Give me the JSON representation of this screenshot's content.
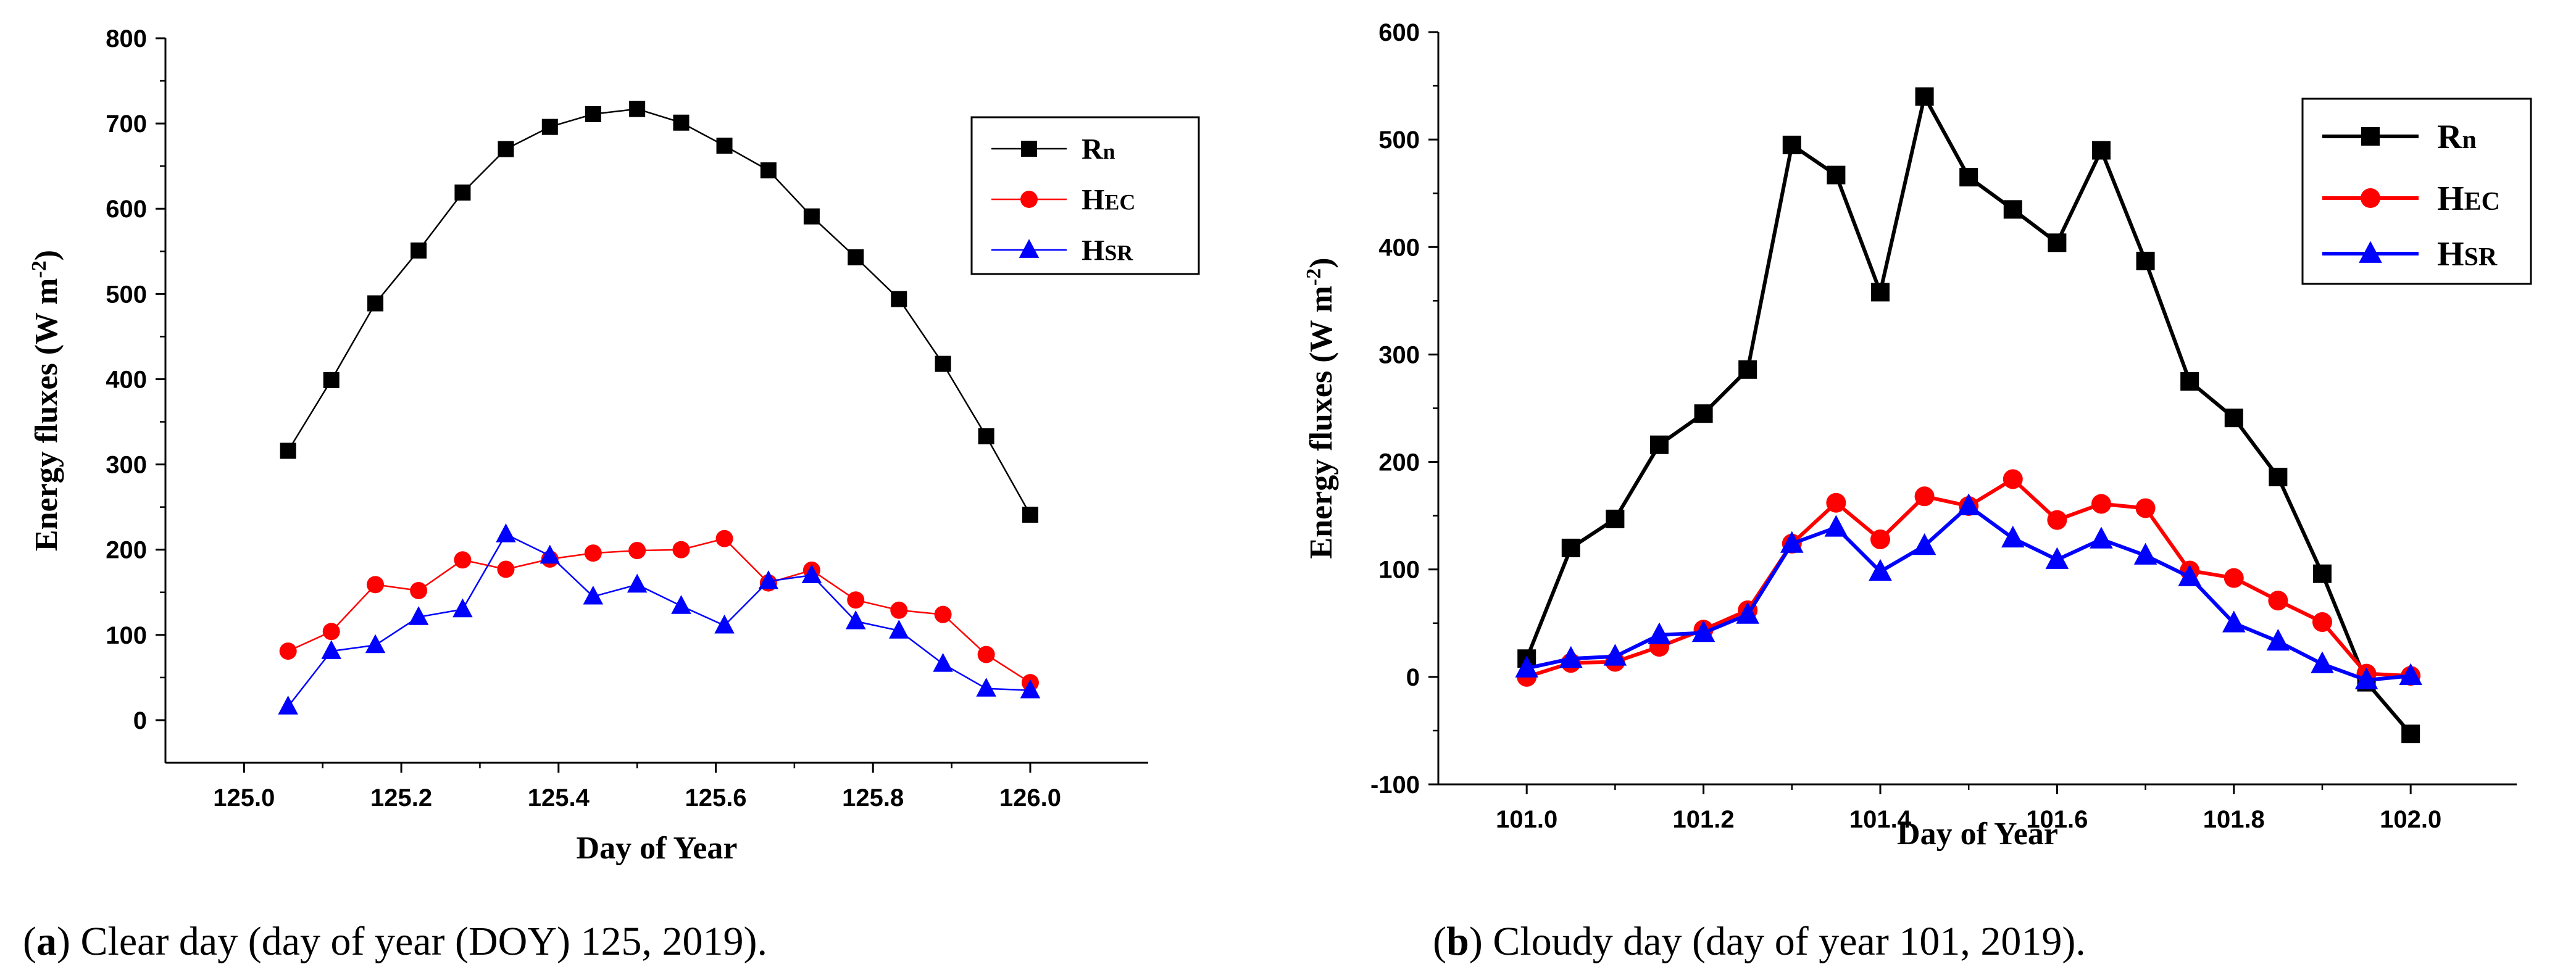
{
  "chart_data": [
    {
      "type": "line",
      "panel": "a",
      "caption_label": "a",
      "caption_text": ") Clear day (day of year (DOY) 125, 2019).",
      "xlabel": "Day of Year",
      "ylabel": "Energy fluxes (W m",
      "ylabel_sup": "-2",
      "ylabel_close": ")",
      "xlim": [
        124.9,
        126.15
      ],
      "ylim": [
        -50,
        800
      ],
      "xticks": [
        125.0,
        125.2,
        125.4,
        125.6,
        125.8,
        126.0
      ],
      "xtick_labels": [
        "125.0",
        "125.2",
        "125.4",
        "125.6",
        "125.8",
        "126.0"
      ],
      "yticks": [
        0,
        100,
        200,
        300,
        400,
        500,
        600,
        700,
        800
      ],
      "ytick_labels": [
        "0",
        "100",
        "200",
        "300",
        "400",
        "500",
        "600",
        "700",
        "800"
      ],
      "legend_position": "top-right",
      "x": [
        125.056,
        125.111,
        125.167,
        125.222,
        125.278,
        125.333,
        125.389,
        125.444,
        125.5,
        125.556,
        125.611,
        125.667,
        125.722,
        125.778,
        125.833,
        125.889,
        125.944,
        126.0
      ],
      "series": [
        {
          "name": "Rn",
          "name_main": "R",
          "name_sub": "n",
          "color": "#000000",
          "marker": "square",
          "values": [
            316,
            399,
            489,
            551,
            619,
            670,
            696,
            711,
            717,
            701,
            674,
            645,
            591,
            543,
            494,
            418,
            333,
            241
          ]
        },
        {
          "name": "HEC",
          "name_main": "H",
          "name_sub": "EC",
          "color": "#ff0000",
          "marker": "circle",
          "values": [
            81,
            104,
            159,
            152,
            188,
            177,
            189,
            196,
            199,
            200,
            213,
            161,
            176,
            141,
            129,
            124,
            77,
            44
          ]
        },
        {
          "name": "HSR",
          "name_main": "H",
          "name_sub": "SR",
          "color": "#0000ff",
          "marker": "triangle",
          "values": [
            16,
            81,
            88,
            121,
            130,
            218,
            193,
            145,
            159,
            134,
            111,
            163,
            170,
            116,
            105,
            66,
            37,
            35
          ]
        }
      ]
    },
    {
      "type": "line",
      "panel": "b",
      "caption_label": "b",
      "caption_text": ") Cloudy day (day of year 101, 2019).",
      "xlabel": "Day of Year",
      "ylabel": "Energy fluxes (W m",
      "ylabel_sup": "-2",
      "ylabel_close": ")",
      "xlim": [
        100.9,
        102.12
      ],
      "ylim": [
        -100,
        600
      ],
      "xticks": [
        101.0,
        101.2,
        101.4,
        101.6,
        101.8,
        102.0
      ],
      "xtick_labels": [
        "101.0",
        "101.2",
        "101.4",
        "101.6",
        "101.8",
        "102.0"
      ],
      "yticks": [
        -100,
        0,
        100,
        200,
        300,
        400,
        500,
        600
      ],
      "ytick_labels": [
        "-100",
        "0",
        "100",
        "200",
        "300",
        "400",
        "500",
        "600"
      ],
      "legend_position": "top-right",
      "x": [
        101.0,
        101.05,
        101.1,
        101.15,
        101.2,
        101.25,
        101.3,
        101.35,
        101.4,
        101.45,
        101.5,
        101.55,
        101.6,
        101.65,
        101.7,
        101.75,
        101.8,
        101.85,
        101.9,
        101.95,
        102.0
      ],
      "series": [
        {
          "name": "Rn",
          "name_main": "R",
          "name_sub": "n",
          "color": "#000000",
          "marker": "square",
          "values": [
            17,
            120,
            147,
            216,
            245,
            286,
            495,
            467,
            358,
            540,
            465,
            435,
            404,
            490,
            387,
            275,
            241,
            186,
            96,
            -5,
            -53
          ]
        },
        {
          "name": "HEC",
          "name_main": "H",
          "name_sub": "EC",
          "color": "#ff0000",
          "marker": "circle",
          "values": [
            0,
            13,
            14,
            28,
            44,
            62,
            124,
            162,
            128,
            168,
            159,
            184,
            146,
            161,
            157,
            99,
            92,
            71,
            51,
            3,
            1
          ]
        },
        {
          "name": "HSR",
          "name_main": "H",
          "name_sub": "SR",
          "color": "#0000ff",
          "marker": "triangle",
          "values": [
            8,
            17,
            19,
            39,
            41,
            58,
            124,
            139,
            98,
            122,
            159,
            129,
            109,
            128,
            113,
            93,
            50,
            33,
            12,
            -3,
            1
          ]
        }
      ]
    }
  ]
}
